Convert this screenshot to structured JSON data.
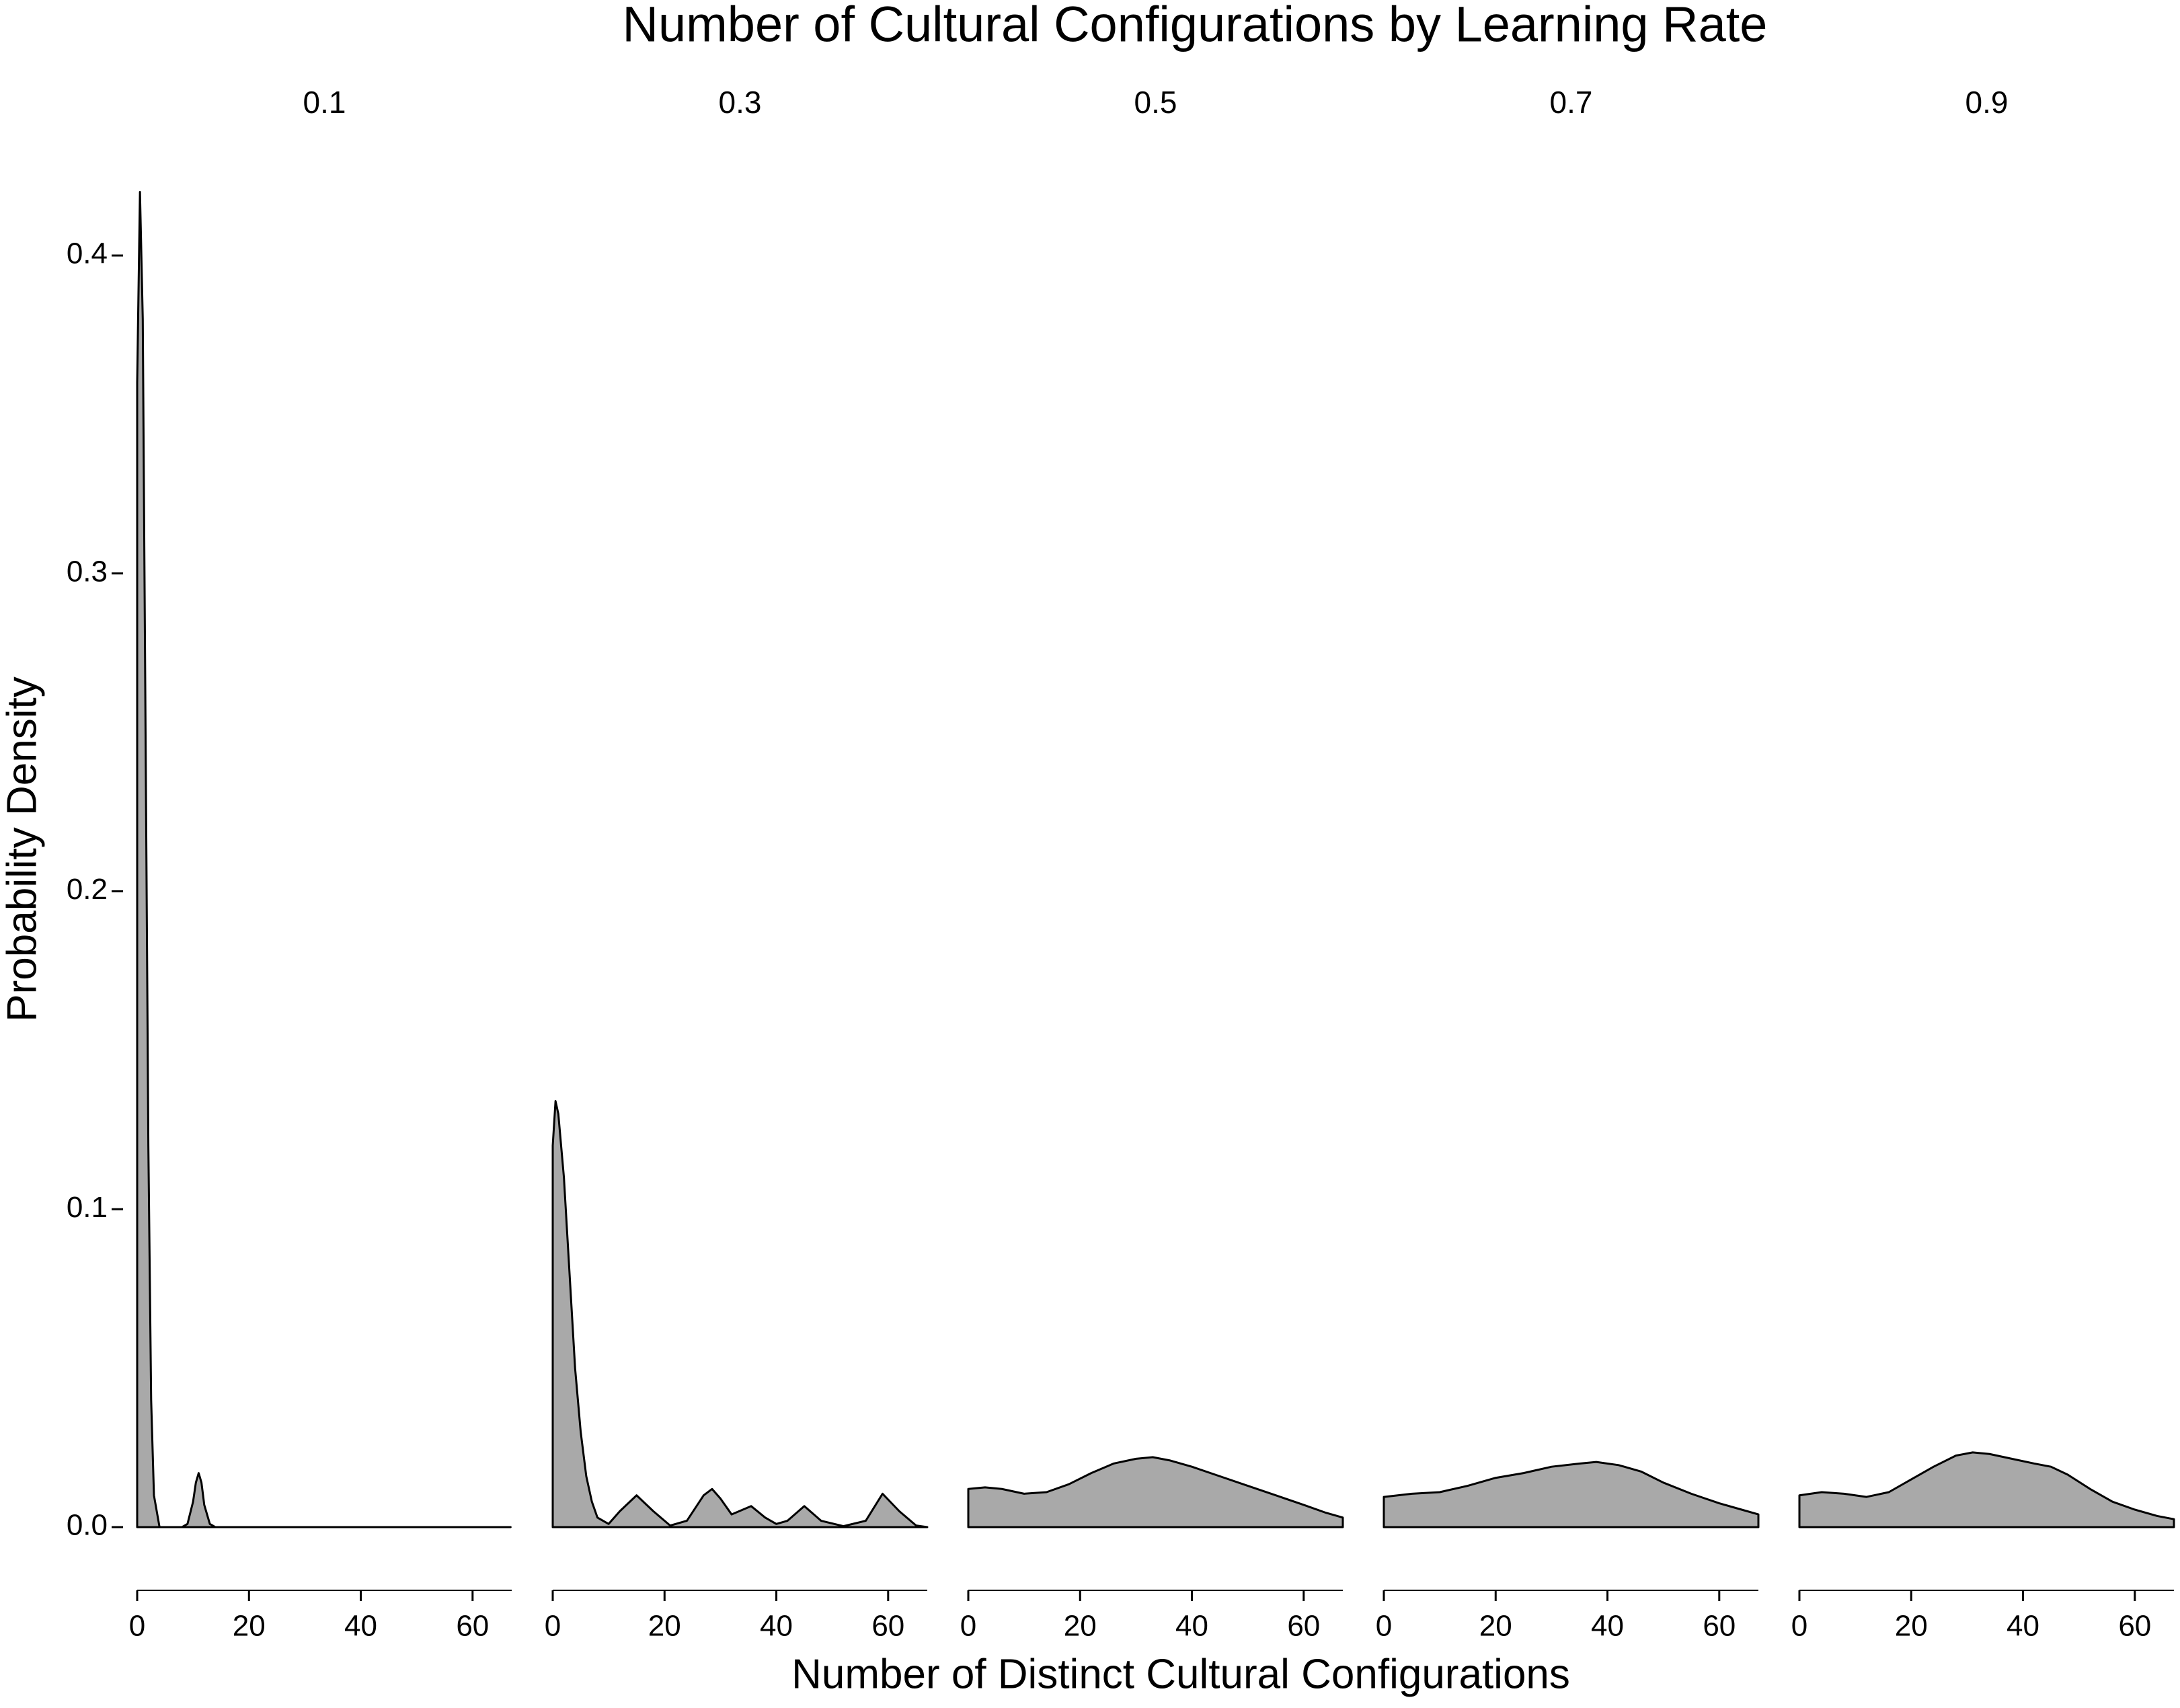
{
  "chart_data": {
    "type": "area",
    "title": "Number of Cultural Configurations by Learning Rate",
    "x_label": "Number of Distinct Cultural Configurations",
    "y_label": "Probability Density",
    "xlim": [
      0,
      67
    ],
    "xticks": [
      0,
      20,
      40,
      60
    ],
    "ylim": [
      0,
      0.42
    ],
    "yticks": [
      {
        "value": 0,
        "label": "0.0"
      },
      0.1,
      0.2,
      0.3,
      0.4
    ],
    "fill": "#a9a9a9",
    "line_color": "#000000",
    "series": [
      {
        "name": "0.1",
        "x": [
          0,
          0.5,
          1,
          1.5,
          2,
          2.5,
          3,
          4,
          8,
          9,
          10,
          10.5,
          11,
          11.5,
          12,
          13,
          14,
          20,
          40,
          66.8
        ],
        "values": [
          0.36,
          0.42,
          0.38,
          0.25,
          0.12,
          0.04,
          0.01,
          0,
          0,
          0.001,
          0.008,
          0.014,
          0.017,
          0.014,
          0.007,
          0.001,
          0,
          0,
          0,
          0
        ]
      },
      {
        "name": "0.3",
        "x": [
          0,
          0.5,
          1,
          2,
          3,
          4,
          5,
          6,
          7,
          8,
          10,
          12,
          15,
          18,
          21,
          24,
          27,
          28.5,
          30,
          32,
          35.5,
          38,
          40,
          42,
          45,
          48,
          52,
          56,
          59,
          62,
          65,
          67
        ],
        "values": [
          0.12,
          0.134,
          0.13,
          0.11,
          0.08,
          0.05,
          0.03,
          0.016,
          0.008,
          0.003,
          0.001,
          0.005,
          0.01,
          0.005,
          0.0005,
          0.002,
          0.01,
          0.012,
          0.009,
          0.004,
          0.0066,
          0.003,
          0.001,
          0.002,
          0.0066,
          0.002,
          0.0003,
          0.002,
          0.0105,
          0.005,
          0.0005,
          0
        ]
      },
      {
        "name": "0.5",
        "x": [
          0,
          3,
          6,
          10,
          14,
          18,
          22,
          26,
          30,
          33,
          36,
          40,
          45,
          50,
          55,
          60,
          64,
          67
        ],
        "values": [
          0.012,
          0.0125,
          0.012,
          0.0105,
          0.011,
          0.0135,
          0.017,
          0.02,
          0.0215,
          0.022,
          0.021,
          0.019,
          0.016,
          0.013,
          0.01,
          0.007,
          0.0045,
          0.003
        ]
      },
      {
        "name": "0.7",
        "x": [
          0,
          5,
          10,
          15,
          20,
          25,
          30,
          35,
          38,
          42,
          46,
          50,
          55,
          60,
          64,
          67
        ],
        "values": [
          0.0095,
          0.0105,
          0.011,
          0.013,
          0.0155,
          0.017,
          0.019,
          0.02,
          0.0205,
          0.0195,
          0.0175,
          0.014,
          0.0105,
          0.0075,
          0.0055,
          0.004
        ]
      },
      {
        "name": "0.9",
        "x": [
          0,
          4,
          8,
          12,
          16,
          20,
          24,
          28,
          31,
          34,
          38,
          42,
          45,
          48,
          52,
          56,
          60,
          64,
          67
        ],
        "values": [
          0.01,
          0.011,
          0.0105,
          0.0095,
          0.011,
          0.015,
          0.019,
          0.0225,
          0.0235,
          0.023,
          0.0215,
          0.02,
          0.019,
          0.0165,
          0.012,
          0.008,
          0.0055,
          0.0035,
          0.0025
        ]
      }
    ]
  }
}
